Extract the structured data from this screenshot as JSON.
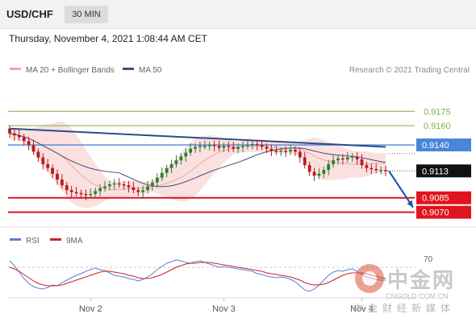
{
  "header": {
    "symbol": "USD/CHF",
    "interval": "30 MIN"
  },
  "datetime": "Thursday, November 4, 2021 1:08:44 AM CET",
  "credit": "Research © 2021 Trading Central",
  "colors": {
    "up": "#2e7d32",
    "down": "#b71c1c",
    "bb": "#f4a6a6",
    "ma50": "#3d4f7a",
    "trend": "#2a4e86",
    "res": "#7cb342",
    "pivot": "#4a86d8",
    "sup": "#e0141e",
    "rsi": "#5b7fd6",
    "rsi_ma": "#d0202a",
    "arrow": "#1f5aa8"
  },
  "legend": {
    "bollinger": "MA 20 + Bollinger Bands",
    "ma50": "MA 50"
  },
  "levels": [
    {
      "label": "0.9175",
      "value": 0.9175,
      "kind": "res"
    },
    {
      "label": "0.9160",
      "value": 0.916,
      "kind": "res"
    },
    {
      "label": "0.9140",
      "value": 0.914,
      "kind": "pivot"
    },
    {
      "label": "0.9113",
      "value": 0.9113,
      "kind": "last"
    },
    {
      "label": "0.9085",
      "value": 0.9085,
      "kind": "sup"
    },
    {
      "label": "0.9070",
      "value": 0.907,
      "kind": "sup"
    }
  ],
  "chart_data": {
    "type": "candlestick",
    "instrument": "USD/CHF",
    "timeframe": "30 MIN",
    "x_ticks": [
      "Nov 2",
      "Nov 3",
      "Nov 4"
    ],
    "ylim": [
      0.9063,
      0.9197
    ],
    "close": [
      0.9152,
      0.915,
      0.9148,
      0.9144,
      0.914,
      0.9133,
      0.9127,
      0.912,
      0.9116,
      0.911,
      0.9104,
      0.9098,
      0.9093,
      0.9091,
      0.909,
      0.9089,
      0.9088,
      0.9089,
      0.9092,
      0.9095,
      0.9097,
      0.9099,
      0.91,
      0.9099,
      0.9098,
      0.9096,
      0.9093,
      0.9091,
      0.9093,
      0.9097,
      0.9101,
      0.9106,
      0.9111,
      0.9116,
      0.912,
      0.9124,
      0.9128,
      0.9132,
      0.9136,
      0.9138,
      0.9139,
      0.9139,
      0.914,
      0.9139,
      0.9137,
      0.9139,
      0.9138,
      0.9136,
      0.9138,
      0.9139,
      0.914,
      0.9141,
      0.914,
      0.9138,
      0.9136,
      0.9134,
      0.9133,
      0.9134,
      0.9133,
      0.9135,
      0.9133,
      0.9127,
      0.9119,
      0.9112,
      0.9108,
      0.911,
      0.9114,
      0.912,
      0.9124,
      0.9126,
      0.9125,
      0.9127,
      0.9128,
      0.9125,
      0.9119,
      0.9116,
      0.9115,
      0.9114,
      0.9114,
      0.9113
    ],
    "series": [
      {
        "name": "MA 20 + Bollinger Bands"
      },
      {
        "name": "MA 50"
      }
    ],
    "indicator": {
      "legend": [
        "RSI",
        "9MA"
      ],
      "label_70": "70",
      "ylim": [
        20,
        80
      ],
      "rsi": [
        68,
        62,
        54,
        46,
        40,
        36,
        34,
        33,
        35,
        38,
        37,
        41,
        44,
        47,
        50,
        52,
        55,
        57,
        59,
        57,
        56,
        53,
        50,
        49,
        48,
        46,
        45,
        43,
        45,
        48,
        52,
        57,
        61,
        65,
        67,
        69,
        68,
        66,
        65,
        67,
        68,
        66,
        64,
        62,
        60,
        61,
        60,
        59,
        58,
        57,
        56,
        55,
        52,
        51,
        49,
        48,
        47,
        48,
        47,
        45,
        42,
        37,
        32,
        30,
        33,
        38,
        44,
        50,
        54,
        56,
        55,
        57,
        58,
        55,
        51,
        48,
        46,
        45,
        44,
        44
      ],
      "ma": [
        60,
        58,
        55,
        51,
        47,
        43,
        40,
        38,
        37,
        37,
        37,
        38,
        40,
        42,
        44,
        46,
        48,
        50,
        52,
        54,
        55,
        55,
        54,
        53,
        52,
        50,
        49,
        47,
        46,
        46,
        47,
        49,
        51,
        54,
        57,
        60,
        62,
        64,
        65,
        65,
        66,
        66,
        66,
        65,
        64,
        63,
        62,
        61,
        60,
        59,
        58,
        57,
        56,
        55,
        53,
        52,
        51,
        50,
        49,
        48,
        46,
        44,
        41,
        39,
        38,
        38,
        39,
        41,
        44,
        47,
        50,
        52,
        53,
        53,
        53,
        52,
        50,
        49,
        47,
        46
      ]
    }
  },
  "watermark": {
    "brand": "中金网",
    "url": "CNGOLD.COM.CN",
    "sub": "中金财经新媒体"
  }
}
